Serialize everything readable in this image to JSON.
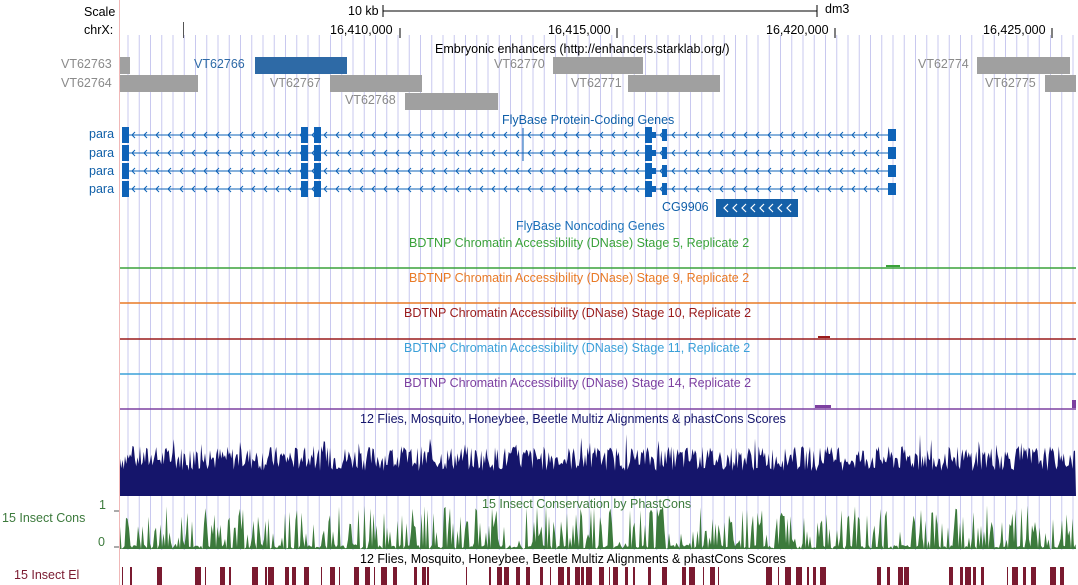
{
  "colors": {
    "blue_link": "#0f5fa8",
    "enhancer_gray": "#a0a0a0",
    "enhancer_sel": "#2e6aa6",
    "gene": "#0e63b8",
    "stage5": "#3aa23a",
    "stage9": "#e97a25",
    "stage10": "#9a1b1b",
    "stage11": "#3aa0d8",
    "stage14": "#7d40a0",
    "multiz": "#15156b",
    "phast": "#3c7a3c",
    "elements": "#7a1a30",
    "grid": "#c8c8ef",
    "left_border": "#f0b8b8"
  },
  "ruler": {
    "scale_label": "Scale",
    "chrom_label": "chrX:",
    "scale_text": "10 kb",
    "assembly": "dm3",
    "positions": [
      "16,410,000",
      "16,415,000",
      "16,420,000",
      "16,425,000"
    ]
  },
  "enhancers": {
    "title": "Embryonic enhancers (http://enhancers.starklab.org/)",
    "items": [
      "VT62763",
      "VT62764",
      "VT62766",
      "VT62767",
      "VT62768",
      "VT62770",
      "VT62771",
      "VT62774",
      "VT62775"
    ]
  },
  "genes": {
    "title": "FlyBase Protein-Coding Genes",
    "isoforms": [
      "para",
      "para",
      "para",
      "para"
    ],
    "cg_label": "CG9906"
  },
  "noncoding": {
    "title": "FlyBase Noncoding Genes"
  },
  "dnase": [
    {
      "title": "BDTNP Chromatin Accessibility (DNase) Stage 5, Replicate 2"
    },
    {
      "title": "BDTNP Chromatin Accessibility (DNase) Stage 9, Replicate 2"
    },
    {
      "title": "BDTNP Chromatin Accessibility (DNase) Stage 10, Replicate 2"
    },
    {
      "title": "BDTNP Chromatin Accessibility (DNase) Stage 11, Replicate 2"
    },
    {
      "title": "BDTNP Chromatin Accessibility (DNase) Stage 14, Replicate 2"
    }
  ],
  "multiz": {
    "title": "12 Flies, Mosquito, Honeybee, Beetle Multiz Alignments & phastCons Scores"
  },
  "phastcons": {
    "title": "15 Insect Conservation by PhastCons",
    "side_label": "15 Insect Cons",
    "y_max": "1",
    "y_min": "0"
  },
  "elements": {
    "title": "12 Flies, Mosquito, Honeybee, Beetle Multiz Alignments & phastCons Scores",
    "side_label": "15 Insect El"
  }
}
